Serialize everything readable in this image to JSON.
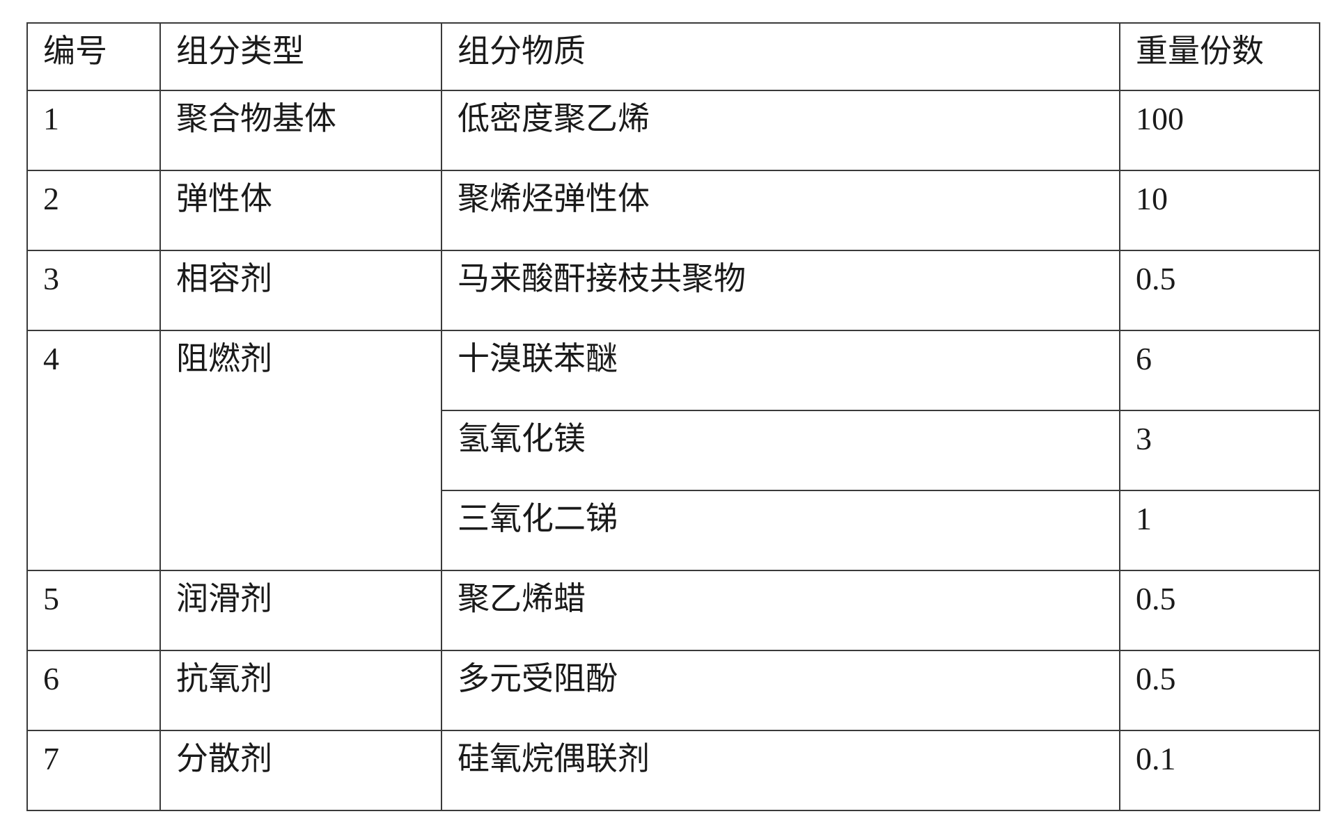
{
  "table": {
    "headers": [
      "编号",
      "组分类型",
      "组分物质",
      "重量份数"
    ],
    "rows": [
      {
        "no": "1",
        "type": "聚合物基体",
        "items": [
          {
            "substance": "低密度聚乙烯",
            "parts": "100"
          }
        ]
      },
      {
        "no": "2",
        "type": "弹性体",
        "items": [
          {
            "substance": "聚烯烃弹性体",
            "parts": "10"
          }
        ]
      },
      {
        "no": "3",
        "type": "相容剂",
        "items": [
          {
            "substance": "马来酸酐接枝共聚物",
            "parts": "0.5"
          }
        ]
      },
      {
        "no": "4",
        "type": "阻燃剂",
        "items": [
          {
            "substance": "十溴联苯醚",
            "parts": "6"
          },
          {
            "substance": "氢氧化镁",
            "parts": "3"
          },
          {
            "substance": "三氧化二锑",
            "parts": "1"
          }
        ]
      },
      {
        "no": "5",
        "type": "润滑剂",
        "items": [
          {
            "substance": "聚乙烯蜡",
            "parts": "0.5"
          }
        ]
      },
      {
        "no": "6",
        "type": "抗氧剂",
        "items": [
          {
            "substance": "多元受阻酚",
            "parts": "0.5"
          }
        ]
      },
      {
        "no": "7",
        "type": "分散剂",
        "items": [
          {
            "substance": "硅氧烷偶联剂",
            "parts": "0.1"
          }
        ]
      }
    ]
  }
}
